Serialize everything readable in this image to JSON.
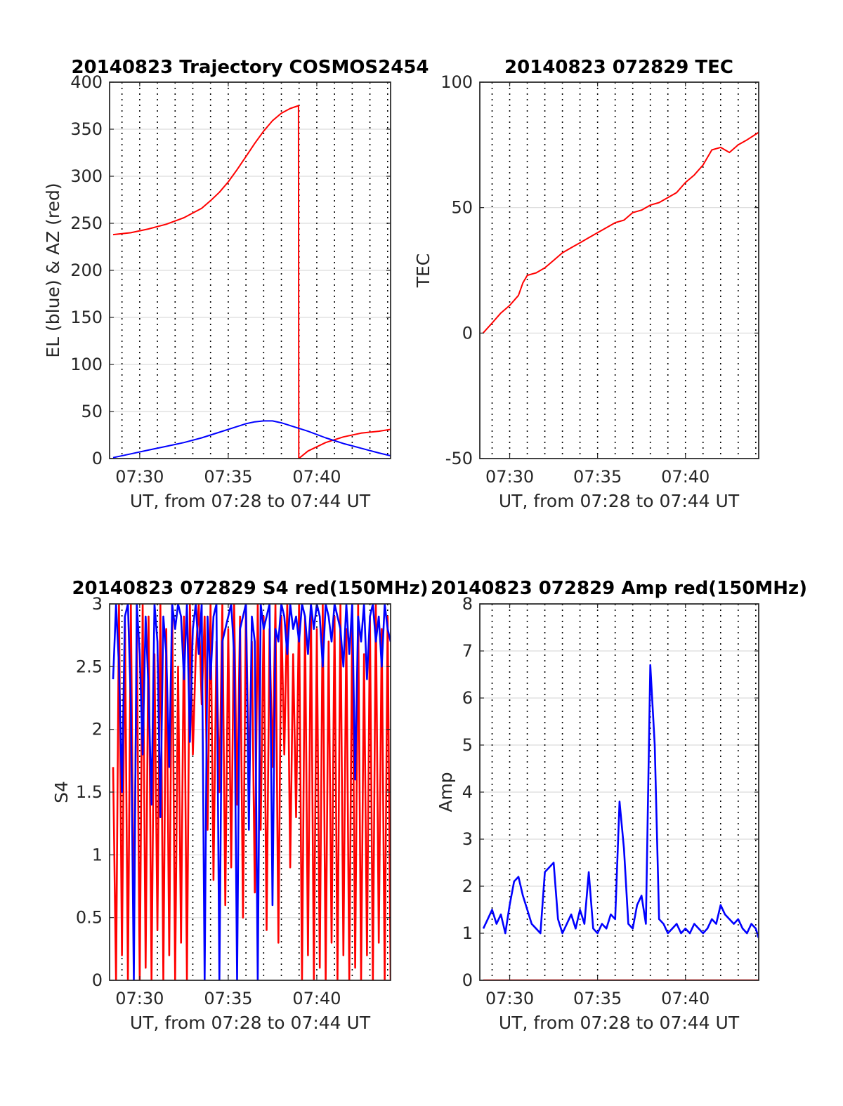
{
  "chart_data": [
    {
      "id": "traj",
      "type": "line",
      "title": "20140823 Trajectory COSMOS2454",
      "xlabel": "UT, from 07:28 to 07:44 UT",
      "ylabel": "EL (blue) & AZ (red)",
      "xlim": [
        "07:28:18",
        "07:44:10"
      ],
      "ylim": [
        0,
        400
      ],
      "yticks": [
        0,
        50,
        100,
        150,
        200,
        250,
        300,
        350,
        400
      ],
      "xticks": [
        "07:30",
        "07:35",
        "07:40"
      ],
      "series": [
        {
          "color": "#ff0000",
          "x": [
            "07:28:30",
            "07:29:30",
            "07:30:30",
            "07:31:30",
            "07:32:30",
            "07:33:30",
            "07:34:00",
            "07:34:30",
            "07:35:00",
            "07:35:30",
            "07:36:00",
            "07:36:30",
            "07:37:00",
            "07:37:30",
            "07:38:00",
            "07:38:30",
            "07:38:58",
            "07:38:59",
            "07:39:30",
            "07:40:30",
            "07:41:30",
            "07:42:30",
            "07:43:30",
            "07:44:10"
          ],
          "y": [
            238,
            240,
            244,
            249,
            256,
            266,
            274,
            283,
            294,
            307,
            321,
            335,
            348,
            359,
            367,
            372,
            375,
            0,
            8,
            17,
            23,
            27,
            29,
            31
          ]
        },
        {
          "color": "#0000ff",
          "x": [
            "07:28:30",
            "07:29:30",
            "07:30:30",
            "07:31:30",
            "07:32:30",
            "07:33:30",
            "07:34:30",
            "07:35:30",
            "07:36:00",
            "07:36:30",
            "07:37:00",
            "07:37:30",
            "07:38:00",
            "07:38:30",
            "07:39:30",
            "07:40:30",
            "07:41:30",
            "07:42:30",
            "07:43:30",
            "07:44:10"
          ],
          "y": [
            1,
            5,
            9,
            13,
            17,
            22,
            28,
            34,
            37,
            39,
            40,
            40,
            38,
            35,
            29,
            22,
            16,
            11,
            6,
            3
          ]
        }
      ]
    },
    {
      "id": "tec",
      "type": "line",
      "title": "20140823 072829 TEC",
      "xlabel": "UT, from 07:28 to 07:44 UT",
      "ylabel": "TEC",
      "xlim": [
        "07:28:18",
        "07:44:10"
      ],
      "ylim": [
        -50,
        100
      ],
      "yticks": [
        -50,
        0,
        50,
        100
      ],
      "xticks": [
        "07:30",
        "07:35",
        "07:40"
      ],
      "series": [
        {
          "color": "#ff0000",
          "x": [
            "07:28:29",
            "07:29:00",
            "07:29:30",
            "07:30:00",
            "07:30:30",
            "07:30:45",
            "07:31:00",
            "07:31:30",
            "07:32:00",
            "07:32:30",
            "07:33:00",
            "07:33:30",
            "07:34:00",
            "07:34:30",
            "07:35:00",
            "07:35:30",
            "07:36:00",
            "07:36:30",
            "07:37:00",
            "07:37:30",
            "07:38:00",
            "07:38:30",
            "07:39:00",
            "07:39:30",
            "07:40:00",
            "07:40:30",
            "07:41:00",
            "07:41:30",
            "07:42:00",
            "07:42:30",
            "07:43:00",
            "07:43:30",
            "07:44:10"
          ],
          "y": [
            0,
            4,
            8,
            11,
            15,
            20,
            23,
            24,
            26,
            29,
            32,
            34,
            36,
            38,
            40,
            42,
            44,
            45,
            48,
            49,
            51,
            52,
            54,
            56,
            60,
            63,
            67,
            73,
            74,
            72,
            75,
            77,
            80
          ]
        }
      ]
    },
    {
      "id": "s4",
      "type": "line",
      "title": "20140823 072829 S4 red(150MHz)",
      "xlabel": "UT, from 07:28 to 07:44 UT",
      "ylabel": "S4",
      "xlim": [
        "07:28:18",
        "07:44:10"
      ],
      "ylim": [
        0,
        3
      ],
      "yticks": [
        0,
        0.5,
        1,
        1.5,
        2,
        2.5,
        3
      ],
      "xticks": [
        "07:30",
        "07:35",
        "07:40"
      ],
      "series": [
        {
          "color": "#ff0000",
          "x": [
            "07:28:30",
            "07:28:40",
            "07:28:50",
            "07:29:00",
            "07:29:10",
            "07:29:20",
            "07:29:30",
            "07:29:40",
            "07:29:50",
            "07:30:00",
            "07:30:10",
            "07:30:20",
            "07:30:30",
            "07:30:40",
            "07:30:50",
            "07:31:00",
            "07:31:10",
            "07:31:20",
            "07:31:30",
            "07:31:40",
            "07:31:50",
            "07:32:00",
            "07:32:10",
            "07:32:20",
            "07:32:30",
            "07:32:40",
            "07:32:50",
            "07:33:00",
            "07:33:10",
            "07:33:20",
            "07:33:30",
            "07:33:40",
            "07:33:50",
            "07:34:00",
            "07:34:10",
            "07:34:20",
            "07:34:30",
            "07:34:40",
            "07:34:50",
            "07:35:00",
            "07:35:10",
            "07:35:20",
            "07:35:30",
            "07:35:40",
            "07:35:50",
            "07:36:00",
            "07:36:10",
            "07:36:20",
            "07:36:30",
            "07:36:40",
            "07:36:50",
            "07:37:00",
            "07:37:10",
            "07:37:20",
            "07:37:30",
            "07:37:40",
            "07:37:50",
            "07:38:00",
            "07:38:10",
            "07:38:20",
            "07:38:30",
            "07:38:40",
            "07:38:50",
            "07:39:00",
            "07:39:10",
            "07:39:20",
            "07:39:30",
            "07:39:40",
            "07:39:50",
            "07:40:00",
            "07:40:10",
            "07:40:20",
            "07:40:30",
            "07:40:40",
            "07:40:50",
            "07:41:00",
            "07:41:10",
            "07:41:20",
            "07:41:30",
            "07:41:40",
            "07:41:50",
            "07:42:00",
            "07:42:10",
            "07:42:20",
            "07:42:30",
            "07:42:40",
            "07:42:50",
            "07:43:00",
            "07:43:10",
            "07:43:20",
            "07:43:30",
            "07:43:40",
            "07:43:50",
            "07:44:00",
            "07:44:10"
          ],
          "y": [
            1.7,
            0,
            3,
            0.2,
            2.9,
            0,
            3,
            0.3,
            2.8,
            0,
            3,
            0.1,
            2.9,
            0,
            2.6,
            0.4,
            3,
            0,
            2.8,
            0.2,
            3,
            0,
            2.5,
            0.3,
            2.9,
            0,
            3,
            1.8,
            2.6,
            3,
            2.2,
            2.9,
            1.2,
            3,
            0.8,
            2.7,
            1.5,
            3,
            0.6,
            2.8,
            0.9,
            3,
            1.4,
            2.9,
            0.5,
            3,
            1.6,
            2.7,
            0.7,
            3,
            1.2,
            2.9,
            0.4,
            2.8,
            1.7,
            3,
            0.3,
            2.9,
            1.8,
            3,
            0.9,
            2.6,
            1.3,
            3,
            0,
            2.9,
            0.2,
            3,
            0,
            2.8,
            0.1,
            3,
            0,
            2.7,
            0.3,
            2.9,
            0,
            3,
            0.2,
            2.8,
            0,
            2.9,
            0.1,
            3,
            0,
            2.6,
            0.2,
            2.9,
            0,
            3,
            0.3,
            2.8,
            0,
            2.9,
            0
          ]
        },
        {
          "color": "#0000ff",
          "x": [
            "07:28:30",
            "07:28:40",
            "07:28:50",
            "07:29:00",
            "07:29:10",
            "07:29:20",
            "07:29:30",
            "07:29:40",
            "07:29:50",
            "07:30:00",
            "07:30:10",
            "07:30:20",
            "07:30:30",
            "07:30:40",
            "07:30:50",
            "07:31:00",
            "07:31:10",
            "07:31:20",
            "07:31:30",
            "07:31:40",
            "07:31:50",
            "07:32:00",
            "07:32:10",
            "07:32:20",
            "07:32:30",
            "07:32:40",
            "07:32:50",
            "07:33:00",
            "07:33:10",
            "07:33:20",
            "07:33:30",
            "07:33:40",
            "07:33:50",
            "07:34:00",
            "07:34:10",
            "07:34:20",
            "07:34:30",
            "07:34:40",
            "07:34:50",
            "07:35:00",
            "07:35:10",
            "07:35:20",
            "07:35:30",
            "07:35:40",
            "07:35:50",
            "07:36:00",
            "07:36:10",
            "07:36:20",
            "07:36:30",
            "07:36:40",
            "07:36:50",
            "07:37:00",
            "07:37:10",
            "07:37:20",
            "07:37:30",
            "07:37:40",
            "07:37:50",
            "07:38:00",
            "07:38:10",
            "07:38:20",
            "07:38:30",
            "07:38:40",
            "07:38:50",
            "07:39:00",
            "07:39:10",
            "07:39:20",
            "07:39:30",
            "07:39:40",
            "07:39:50",
            "07:40:00",
            "07:40:10",
            "07:40:20",
            "07:40:30",
            "07:40:40",
            "07:40:50",
            "07:41:00",
            "07:41:10",
            "07:41:20",
            "07:41:30",
            "07:41:40",
            "07:41:50",
            "07:42:00",
            "07:42:10",
            "07:42:20",
            "07:42:30",
            "07:42:40",
            "07:42:50",
            "07:43:00",
            "07:43:10",
            "07:43:20",
            "07:43:30",
            "07:43:40",
            "07:43:50",
            "07:44:00",
            "07:44:10"
          ],
          "y": [
            2.4,
            3,
            2.5,
            1.5,
            2.9,
            3,
            2.2,
            0,
            3,
            2.6,
            1.8,
            2.9,
            2.3,
            1.4,
            3,
            2.7,
            1.3,
            2.9,
            2.6,
            1.7,
            3,
            2.8,
            3,
            2.9,
            2.4,
            3,
            1.9,
            2.8,
            3,
            2.6,
            3,
            0,
            2.9,
            2.4,
            2.9,
            3,
            0,
            2.7,
            2.8,
            2.9,
            3,
            2.6,
            0,
            2.8,
            2.9,
            3,
            1.2,
            2.9,
            2.7,
            0,
            3,
            2.8,
            2.9,
            3,
            0.6,
            2.8,
            2.7,
            3,
            2.9,
            2.6,
            3,
            2.8,
            2.9,
            2.7,
            3,
            2.9,
            2.6,
            3,
            2.8,
            3,
            2.9,
            2.5,
            3,
            2.9,
            2.7,
            3,
            2.9,
            2.8,
            2.5,
            3,
            2.6,
            3,
            1.6,
            2.9,
            2.7,
            3,
            2.4,
            2.9,
            3,
            2.7,
            2.9,
            2.5,
            3,
            2.8,
            2.7
          ]
        }
      ]
    },
    {
      "id": "amp",
      "type": "line",
      "title": "20140823 072829 Amp red(150MHz)",
      "xlabel": "UT, from 07:28 to 07:44 UT",
      "ylabel": "Amp",
      "xlim": [
        "07:28:18",
        "07:44:10"
      ],
      "ylim": [
        0,
        8
      ],
      "yticks": [
        0,
        1,
        2,
        3,
        4,
        5,
        6,
        7,
        8
      ],
      "xticks": [
        "07:30",
        "07:35",
        "07:40"
      ],
      "series": [
        {
          "color": "#ff0000",
          "x": [
            "07:28:30",
            "07:44:10"
          ],
          "y": [
            0,
            0
          ]
        },
        {
          "color": "#0000ff",
          "x": [
            "07:28:30",
            "07:28:45",
            "07:29:00",
            "07:29:15",
            "07:29:30",
            "07:29:45",
            "07:30:00",
            "07:30:15",
            "07:30:30",
            "07:30:45",
            "07:31:00",
            "07:31:15",
            "07:31:30",
            "07:31:45",
            "07:32:00",
            "07:32:15",
            "07:32:30",
            "07:32:45",
            "07:33:00",
            "07:33:15",
            "07:33:30",
            "07:33:45",
            "07:34:00",
            "07:34:15",
            "07:34:30",
            "07:34:45",
            "07:35:00",
            "07:35:15",
            "07:35:30",
            "07:35:45",
            "07:36:00",
            "07:36:15",
            "07:36:30",
            "07:36:45",
            "07:37:00",
            "07:37:15",
            "07:37:30",
            "07:37:45",
            "07:38:00",
            "07:38:15",
            "07:38:30",
            "07:38:45",
            "07:39:00",
            "07:39:15",
            "07:39:30",
            "07:39:45",
            "07:40:00",
            "07:40:15",
            "07:40:30",
            "07:40:45",
            "07:41:00",
            "07:41:15",
            "07:41:30",
            "07:41:45",
            "07:42:00",
            "07:42:15",
            "07:42:30",
            "07:42:45",
            "07:43:00",
            "07:43:15",
            "07:43:30",
            "07:43:45",
            "07:44:00",
            "07:44:10"
          ],
          "y": [
            1.1,
            1.3,
            1.5,
            1.2,
            1.4,
            1.0,
            1.6,
            2.1,
            2.2,
            1.8,
            1.5,
            1.2,
            1.1,
            1.0,
            2.3,
            2.4,
            2.5,
            1.3,
            1.0,
            1.2,
            1.4,
            1.1,
            1.5,
            1.2,
            2.3,
            1.1,
            1.0,
            1.2,
            1.1,
            1.4,
            1.3,
            3.8,
            2.8,
            1.2,
            1.1,
            1.6,
            1.8,
            1.2,
            6.7,
            5.0,
            1.3,
            1.2,
            1.0,
            1.1,
            1.2,
            1.0,
            1.1,
            1.0,
            1.2,
            1.1,
            1.0,
            1.1,
            1.3,
            1.2,
            1.6,
            1.4,
            1.3,
            1.2,
            1.3,
            1.1,
            1.0,
            1.2,
            1.1,
            0.9
          ]
        }
      ]
    }
  ]
}
